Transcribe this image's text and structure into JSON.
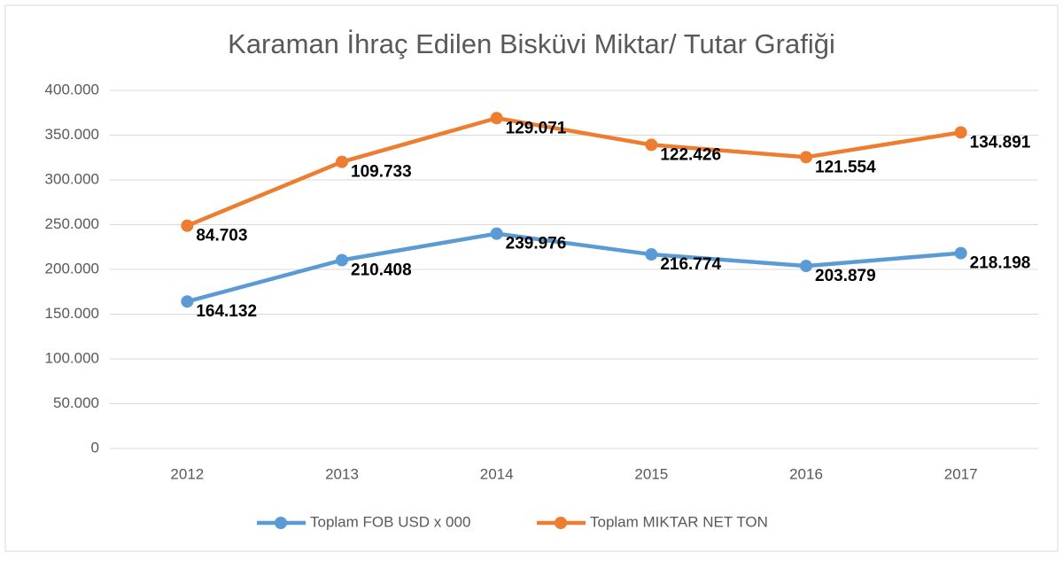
{
  "chart_data": {
    "type": "line",
    "stacked": true,
    "title": "Karaman İhraç Edilen Bisküvi Miktar/ Tutar Grafiği",
    "categories": [
      "2012",
      "2013",
      "2014",
      "2015",
      "2016",
      "2017"
    ],
    "series": [
      {
        "name": "Toplam FOB USD x 000",
        "color": "#5b9bd5",
        "values": [
          164132,
          210408,
          239976,
          216774,
          203879,
          218198
        ],
        "value_labels": [
          "164.132",
          "210.408",
          "239.976",
          "216.774",
          "203.879",
          "218.198"
        ]
      },
      {
        "name": "Toplam MIKTAR NET TON",
        "color": "#ed7d31",
        "values": [
          84703,
          109733,
          129071,
          122426,
          121554,
          134891
        ],
        "value_labels": [
          "84.703",
          "109.733",
          "129.071",
          "122.426",
          "121.554",
          "134.891"
        ]
      }
    ],
    "ylim": [
      0,
      400000
    ],
    "yticks": [
      0,
      {
        "value": 50000,
        "label": "50.000"
      },
      {
        "value": 100000,
        "label": "100.000"
      },
      {
        "value": 150000,
        "label": "150.000"
      },
      {
        "value": 200000,
        "label": "200.000"
      },
      {
        "value": 250000,
        "label": "250.000"
      },
      {
        "value": 300000,
        "label": "300.000"
      },
      {
        "value": 350000,
        "label": "350.000"
      },
      {
        "value": 400000,
        "label": "400.000"
      }
    ],
    "grid": true,
    "legend": "bottom"
  }
}
